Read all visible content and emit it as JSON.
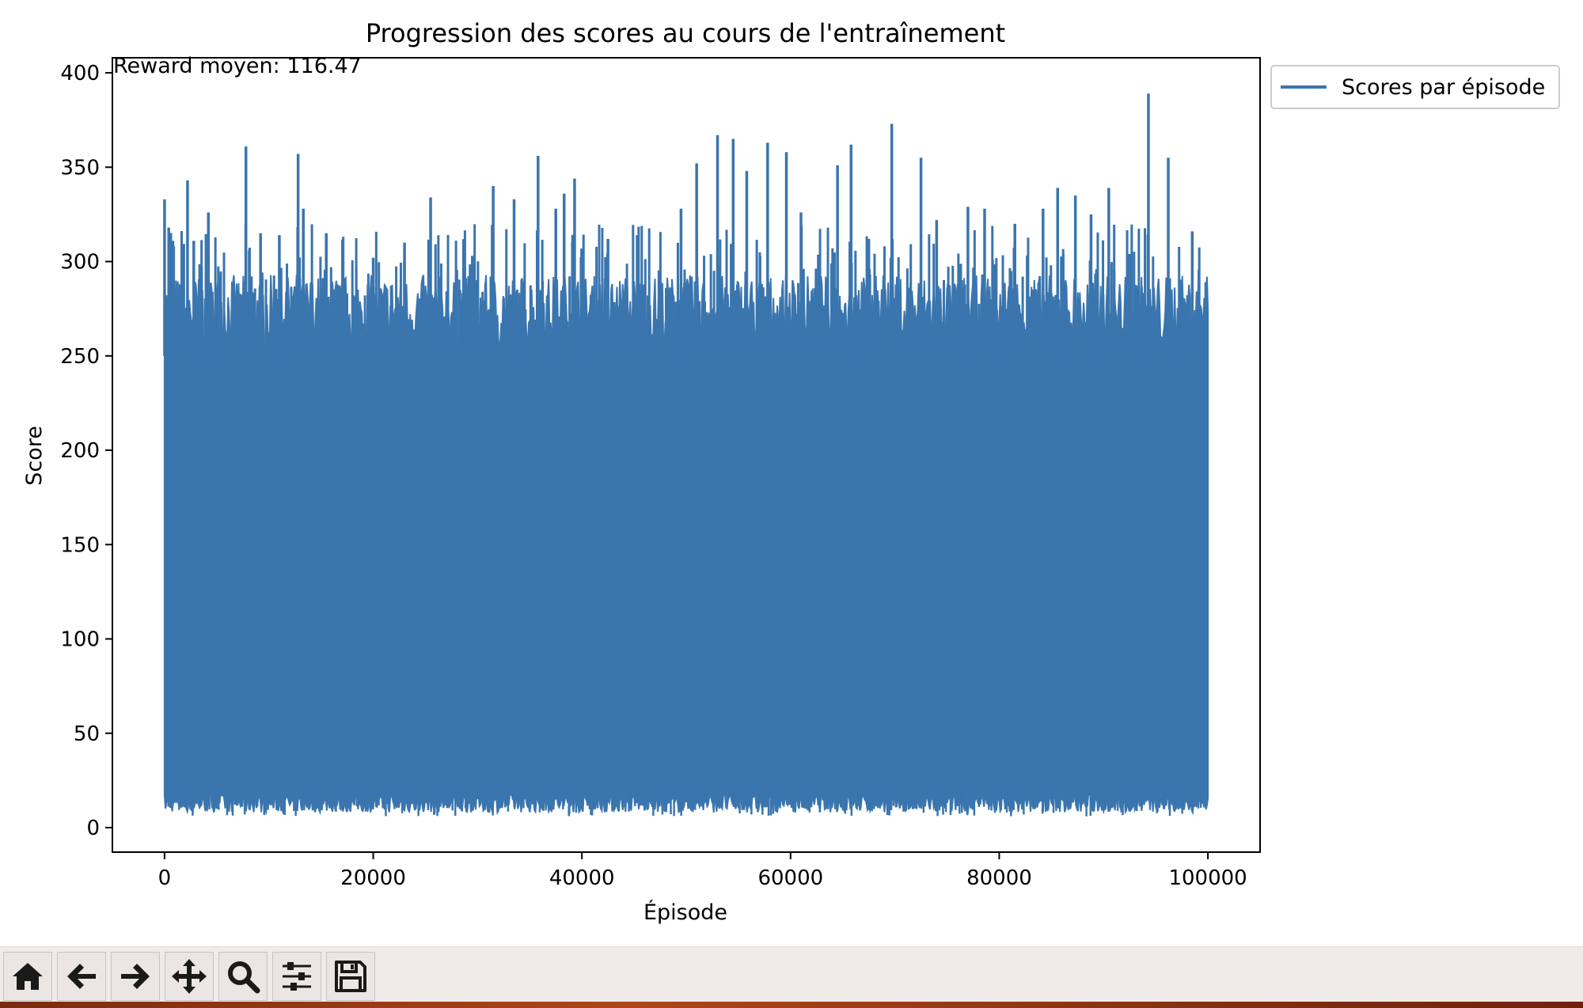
{
  "chart_data": {
    "type": "line",
    "title": "Progression des scores au cours de l'entraînement",
    "xlabel": "Épisode",
    "ylabel": "Score",
    "xlim": [
      -5000,
      105000
    ],
    "ylim": [
      -13,
      408
    ],
    "x_ticks": [
      0,
      20000,
      40000,
      60000,
      80000,
      100000
    ],
    "x_tick_labels": [
      "0",
      "20000",
      "40000",
      "60000",
      "80000",
      "100000"
    ],
    "y_ticks": [
      0,
      50,
      100,
      150,
      200,
      250,
      300,
      350,
      400
    ],
    "y_tick_labels": [
      "0",
      "50",
      "100",
      "150",
      "200",
      "250",
      "300",
      "350",
      "400"
    ],
    "grid": false,
    "legend_position": "outside-top-right",
    "annotation": "Reward moyen: 116.47",
    "series": [
      {
        "name": "Scores par épisode",
        "color": "#3a75ae",
        "x_range": [
          0,
          100000
        ],
        "band_low": 8,
        "band_high": 265,
        "peaks": [
          {
            "x": 0,
            "y": 333
          },
          {
            "x": 400,
            "y": 318
          },
          {
            "x": 800,
            "y": 311
          },
          {
            "x": 1500,
            "y": 288
          },
          {
            "x": 2200,
            "y": 343
          },
          {
            "x": 2800,
            "y": 311
          },
          {
            "x": 4200,
            "y": 326
          },
          {
            "x": 5200,
            "y": 293
          },
          {
            "x": 7800,
            "y": 361
          },
          {
            "x": 9200,
            "y": 315
          },
          {
            "x": 11000,
            "y": 314
          },
          {
            "x": 12800,
            "y": 357
          },
          {
            "x": 13300,
            "y": 328
          },
          {
            "x": 15500,
            "y": 315
          },
          {
            "x": 20000,
            "y": 302
          },
          {
            "x": 23000,
            "y": 310
          },
          {
            "x": 25500,
            "y": 334
          },
          {
            "x": 29500,
            "y": 303
          },
          {
            "x": 31500,
            "y": 340
          },
          {
            "x": 33500,
            "y": 333
          },
          {
            "x": 35800,
            "y": 356
          },
          {
            "x": 37500,
            "y": 328
          },
          {
            "x": 38300,
            "y": 336
          },
          {
            "x": 39300,
            "y": 344
          },
          {
            "x": 42500,
            "y": 312
          },
          {
            "x": 45300,
            "y": 314
          },
          {
            "x": 49500,
            "y": 328
          },
          {
            "x": 51000,
            "y": 352
          },
          {
            "x": 53000,
            "y": 367
          },
          {
            "x": 54500,
            "y": 365
          },
          {
            "x": 55800,
            "y": 348
          },
          {
            "x": 57800,
            "y": 363
          },
          {
            "x": 59600,
            "y": 358
          },
          {
            "x": 61000,
            "y": 326
          },
          {
            "x": 64500,
            "y": 351
          },
          {
            "x": 65800,
            "y": 362
          },
          {
            "x": 67500,
            "y": 312
          },
          {
            "x": 69700,
            "y": 373
          },
          {
            "x": 72500,
            "y": 355
          },
          {
            "x": 74000,
            "y": 322
          },
          {
            "x": 77000,
            "y": 329
          },
          {
            "x": 78600,
            "y": 328
          },
          {
            "x": 81500,
            "y": 320
          },
          {
            "x": 84200,
            "y": 328
          },
          {
            "x": 85600,
            "y": 339
          },
          {
            "x": 87300,
            "y": 335
          },
          {
            "x": 88800,
            "y": 325
          },
          {
            "x": 90500,
            "y": 339
          },
          {
            "x": 92500,
            "y": 304
          },
          {
            "x": 94300,
            "y": 389
          },
          {
            "x": 96200,
            "y": 355
          },
          {
            "x": 98500,
            "y": 316
          },
          {
            "x": 99800,
            "y": 289
          }
        ]
      }
    ]
  },
  "toolbar": {
    "buttons": [
      {
        "name": "home-button",
        "icon": "home-icon"
      },
      {
        "name": "back-button",
        "icon": "arrow-left-icon"
      },
      {
        "name": "forward-button",
        "icon": "arrow-right-icon"
      },
      {
        "name": "pan-button",
        "icon": "move-icon"
      },
      {
        "name": "zoom-button",
        "icon": "magnifier-icon"
      },
      {
        "name": "configure-subplots-button",
        "icon": "sliders-icon"
      },
      {
        "name": "save-button",
        "icon": "floppy-disk-icon"
      }
    ]
  }
}
